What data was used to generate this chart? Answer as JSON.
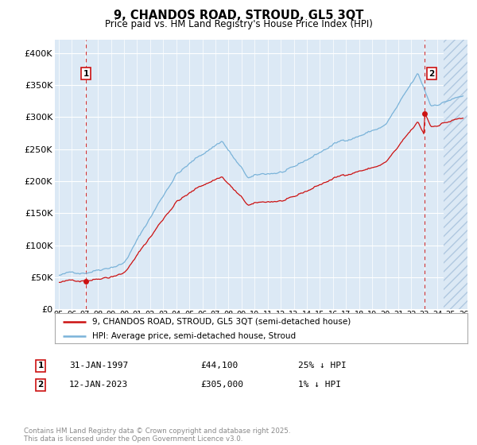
{
  "title": "9, CHANDOS ROAD, STROUD, GL5 3QT",
  "subtitle": "Price paid vs. HM Land Registry's House Price Index (HPI)",
  "hpi_color": "#7ab3d9",
  "price_color": "#cc1111",
  "bg_color": "#ffffff",
  "plot_bg_color": "#dce9f5",
  "hatch_bg_color": "#c8d8ea",
  "legend_label_price": "9, CHANDOS ROAD, STROUD, GL5 3QT (semi-detached house)",
  "legend_label_hpi": "HPI: Average price, semi-detached house, Stroud",
  "ann1_label": "1",
  "ann1_date": "31-JAN-1997",
  "ann1_price": "£44,100",
  "ann1_hpi_text": "25% ↓ HPI",
  "ann1_year": 1997.08,
  "ann1_value": 44100,
  "ann2_label": "2",
  "ann2_date": "12-JAN-2023",
  "ann2_price": "£305,000",
  "ann2_hpi_text": "1% ↓ HPI",
  "ann2_year": 2023.04,
  "ann2_value": 305000,
  "ylim": [
    0,
    420000
  ],
  "xlim_start": 1994.7,
  "xlim_end": 2026.3,
  "yticks": [
    0,
    50000,
    100000,
    150000,
    200000,
    250000,
    300000,
    350000,
    400000
  ],
  "ytick_labels": [
    "£0",
    "£50K",
    "£100K",
    "£150K",
    "£200K",
    "£250K",
    "£300K",
    "£350K",
    "£400K"
  ],
  "xtick_years": [
    1995,
    1996,
    1997,
    1998,
    1999,
    2000,
    2001,
    2002,
    2003,
    2004,
    2005,
    2006,
    2007,
    2008,
    2009,
    2010,
    2011,
    2012,
    2013,
    2014,
    2015,
    2016,
    2017,
    2018,
    2019,
    2020,
    2021,
    2022,
    2023,
    2024,
    2025,
    2026
  ],
  "footer": "Contains HM Land Registry data © Crown copyright and database right 2025.\nThis data is licensed under the Open Government Licence v3.0."
}
